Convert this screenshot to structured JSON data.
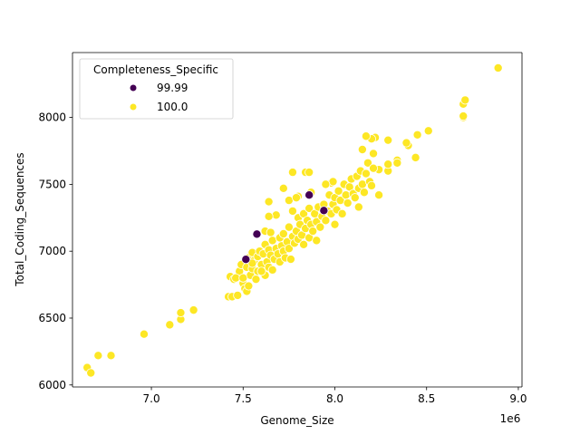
{
  "chart_data": {
    "type": "scatter",
    "title": "",
    "xlabel": "Genome_Size",
    "ylabel": "Total_Coding_Sequences",
    "x_offset_label": "1e6",
    "xlim": [
      6.57,
      9.02
    ],
    "ylim": [
      5985,
      8485
    ],
    "xticks": [
      7.0,
      7.5,
      8.0,
      8.5,
      9.0
    ],
    "xtick_labels": [
      "7.0",
      "7.5",
      "8.0",
      "8.5",
      "9.0"
    ],
    "yticks": [
      6000,
      6500,
      7000,
      7500,
      8000
    ],
    "ytick_labels": [
      "6000",
      "6500",
      "7000",
      "7500",
      "8000"
    ],
    "grid": false,
    "legend": {
      "title": "Completeness_Specific",
      "placement": "top-left",
      "entries": [
        {
          "label": "99.99",
          "color": "#440154"
        },
        {
          "label": "100.0",
          "color": "#fde725"
        }
      ]
    },
    "series": [
      {
        "name": "100.0",
        "color": "#fde725",
        "points": [
          [
            6.65,
            6130
          ],
          [
            6.67,
            6090
          ],
          [
            6.71,
            6220
          ],
          [
            6.78,
            6220
          ],
          [
            6.96,
            6380
          ],
          [
            7.1,
            6450
          ],
          [
            7.16,
            6490
          ],
          [
            7.16,
            6540
          ],
          [
            7.23,
            6560
          ],
          [
            7.42,
            6660
          ],
          [
            7.44,
            6660
          ],
          [
            7.43,
            6810
          ],
          [
            7.47,
            6670
          ],
          [
            7.45,
            6790
          ],
          [
            8.89,
            8370
          ],
          [
            8.7,
            8100
          ],
          [
            8.71,
            8130
          ],
          [
            8.7,
            8000
          ],
          [
            8.7,
            8010
          ],
          [
            8.51,
            7900
          ],
          [
            8.45,
            7870
          ],
          [
            8.4,
            7790
          ],
          [
            8.39,
            7810
          ],
          [
            8.44,
            7700
          ],
          [
            8.34,
            7680
          ],
          [
            8.34,
            7660
          ],
          [
            8.29,
            7830
          ],
          [
            8.29,
            7600
          ],
          [
            8.29,
            7650
          ],
          [
            8.22,
            7850
          ],
          [
            8.2,
            7840
          ],
          [
            8.17,
            7860
          ],
          [
            8.15,
            7760
          ],
          [
            8.21,
            7730
          ],
          [
            8.24,
            7610
          ],
          [
            8.24,
            7420
          ],
          [
            8.13,
            7330
          ],
          [
            7.77,
            7590
          ],
          [
            7.84,
            7590
          ],
          [
            7.86,
            7590
          ],
          [
            7.72,
            7470
          ],
          [
            7.75,
            7380
          ],
          [
            7.64,
            7370
          ],
          [
            7.68,
            7270
          ],
          [
            7.64,
            7260
          ],
          [
            7.62,
            7150
          ],
          [
            7.65,
            7140
          ],
          [
            7.48,
            6850
          ],
          [
            7.49,
            6900
          ],
          [
            7.5,
            6760
          ],
          [
            7.51,
            6720
          ],
          [
            7.52,
            6700
          ],
          [
            7.52,
            6880
          ],
          [
            7.53,
            6950
          ],
          [
            7.54,
            6820
          ],
          [
            7.55,
            6990
          ],
          [
            7.55,
            6870
          ],
          [
            7.56,
            6930
          ],
          [
            7.57,
            6790
          ],
          [
            7.58,
            6850
          ],
          [
            7.58,
            6960
          ],
          [
            7.59,
            7000
          ],
          [
            7.6,
            6900
          ],
          [
            7.61,
            6840
          ],
          [
            7.61,
            6980
          ],
          [
            7.62,
            6820
          ],
          [
            7.62,
            7050
          ],
          [
            7.63,
            6920
          ],
          [
            7.64,
            6880
          ],
          [
            7.64,
            7010
          ],
          [
            7.65,
            6970
          ],
          [
            7.66,
            6860
          ],
          [
            7.66,
            7080
          ],
          [
            7.67,
            6940
          ],
          [
            7.68,
            7020
          ],
          [
            7.69,
            6980
          ],
          [
            7.7,
            7100
          ],
          [
            7.7,
            6920
          ],
          [
            7.71,
            7040
          ],
          [
            7.72,
            7130
          ],
          [
            7.72,
            7000
          ],
          [
            7.73,
            6950
          ],
          [
            7.74,
            7070
          ],
          [
            7.75,
            7180
          ],
          [
            7.75,
            7020
          ],
          [
            7.76,
            6940
          ],
          [
            7.77,
            7110
          ],
          [
            7.77,
            7300
          ],
          [
            7.78,
            7060
          ],
          [
            7.79,
            7150
          ],
          [
            7.8,
            7250
          ],
          [
            7.8,
            7090
          ],
          [
            7.81,
            7200
          ],
          [
            7.82,
            7120
          ],
          [
            7.83,
            7050
          ],
          [
            7.83,
            7280
          ],
          [
            7.84,
            7170
          ],
          [
            7.85,
            7230
          ],
          [
            7.86,
            7100
          ],
          [
            7.86,
            7320
          ],
          [
            7.87,
            7200
          ],
          [
            7.88,
            7150
          ],
          [
            7.89,
            7280
          ],
          [
            7.9,
            7220
          ],
          [
            7.9,
            7080
          ],
          [
            7.91,
            7330
          ],
          [
            7.92,
            7180
          ],
          [
            7.93,
            7260
          ],
          [
            7.94,
            7350
          ],
          [
            7.95,
            7230
          ],
          [
            7.96,
            7300
          ],
          [
            7.97,
            7420
          ],
          [
            7.98,
            7280
          ],
          [
            7.99,
            7350
          ],
          [
            8.0,
            7200
          ],
          [
            8.0,
            7400
          ],
          [
            8.01,
            7310
          ],
          [
            8.02,
            7450
          ],
          [
            8.03,
            7380
          ],
          [
            8.04,
            7280
          ],
          [
            8.05,
            7500
          ],
          [
            8.06,
            7420
          ],
          [
            8.07,
            7360
          ],
          [
            8.08,
            7480
          ],
          [
            8.09,
            7540
          ],
          [
            8.1,
            7430
          ],
          [
            8.11,
            7400
          ],
          [
            8.12,
            7560
          ],
          [
            8.13,
            7470
          ],
          [
            8.14,
            7600
          ],
          [
            8.15,
            7500
          ],
          [
            8.16,
            7440
          ],
          [
            8.17,
            7580
          ],
          [
            8.18,
            7660
          ],
          [
            8.19,
            7520
          ],
          [
            8.2,
            7490
          ],
          [
            8.21,
            7620
          ],
          [
            7.98,
            7510
          ],
          [
            7.99,
            7520
          ],
          [
            7.87,
            7440
          ],
          [
            7.8,
            7410
          ],
          [
            7.79,
            7400
          ],
          [
            7.95,
            7500
          ],
          [
            7.53,
            6740
          ],
          [
            7.46,
            6800
          ],
          [
            7.5,
            6800
          ],
          [
            7.55,
            6910
          ],
          [
            7.6,
            6850
          ]
        ]
      },
      {
        "name": "99.99",
        "color": "#440154",
        "points": [
          [
            7.575,
            7128
          ],
          [
            7.515,
            6939
          ],
          [
            7.86,
            7420
          ],
          [
            7.94,
            7304
          ]
        ]
      }
    ]
  }
}
